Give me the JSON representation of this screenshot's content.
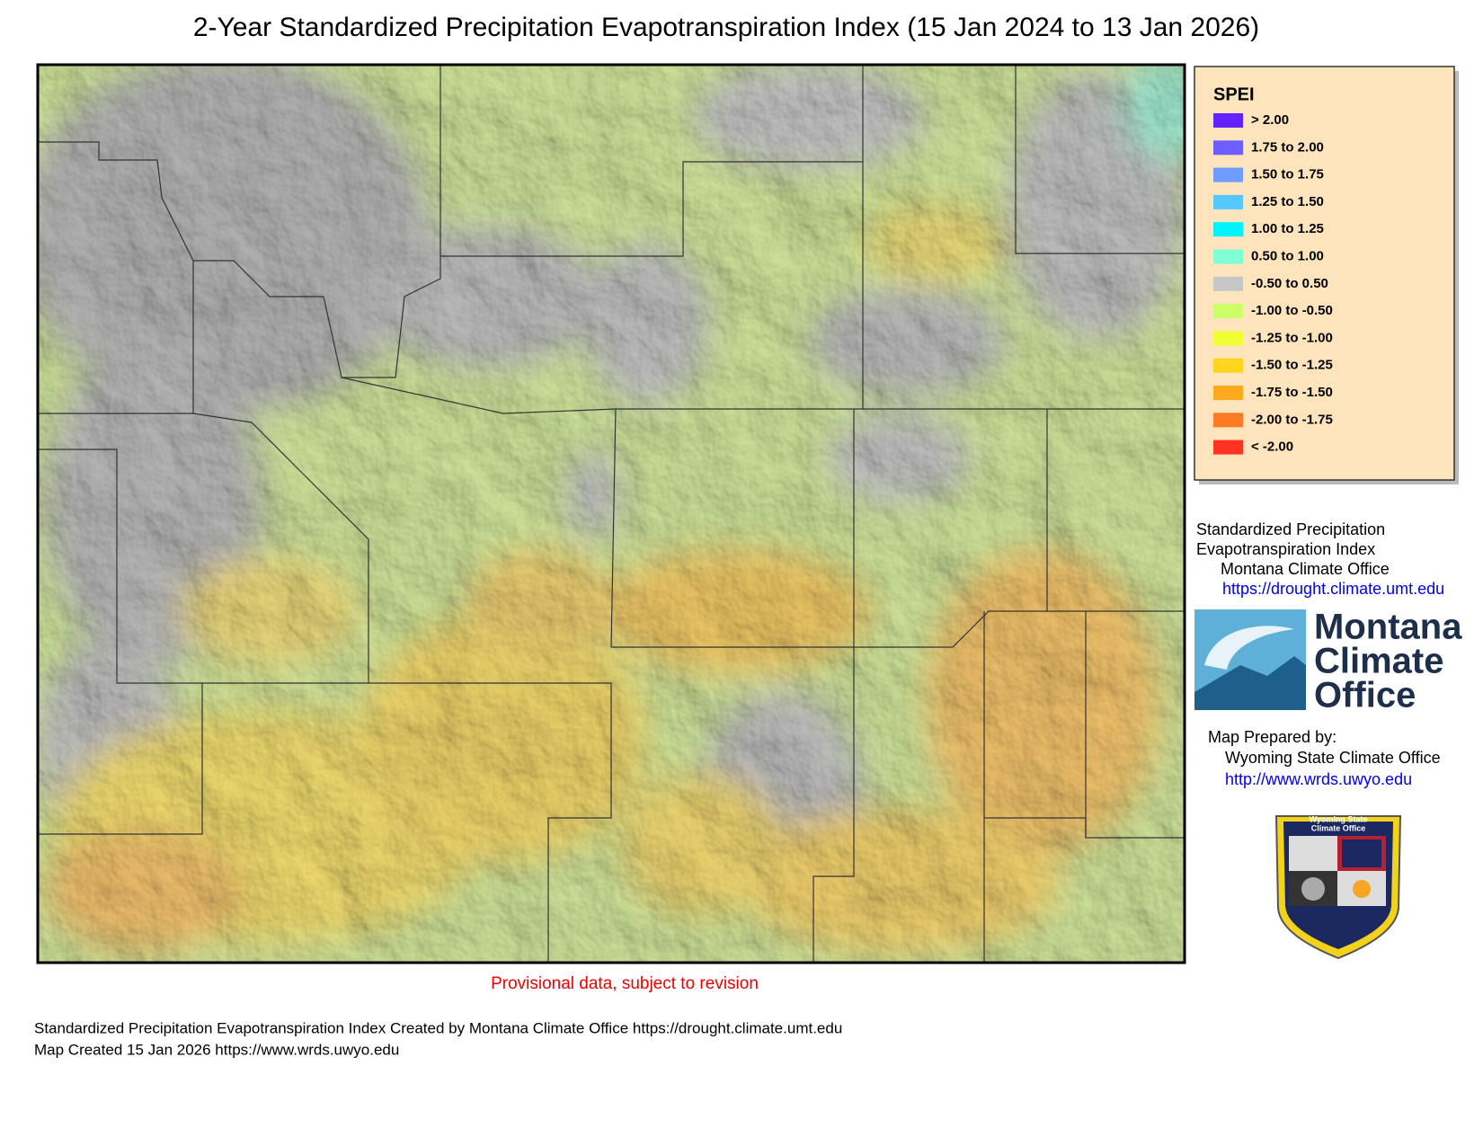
{
  "title": "2-Year Standardized Precipitation Evapotranspiration Index (15 Jan 2024 to 13 Jan 2026)",
  "legend": {
    "title": "SPEI",
    "items": [
      {
        "label": "> 2.00",
        "color": "#6422ff"
      },
      {
        "label": "1.75 to 2.00",
        "color": "#6e5eff"
      },
      {
        "label": "1.50 to 1.75",
        "color": "#6e9cff"
      },
      {
        "label": "1.25 to 1.50",
        "color": "#55c8ff"
      },
      {
        "label": "1.00 to 1.25",
        "color": "#00f4ff"
      },
      {
        "label": "0.50 to 1.00",
        "color": "#80ffd4"
      },
      {
        "label": "-0.50 to 0.50",
        "color": "#c6c6c6"
      },
      {
        "label": "-1.00 to -0.50",
        "color": "#ccff66"
      },
      {
        "label": "-1.25 to -1.00",
        "color": "#eeff33"
      },
      {
        "label": "-1.50 to -1.25",
        "color": "#ffd41e"
      },
      {
        "label": "-1.75 to -1.50",
        "color": "#ffaa1e"
      },
      {
        "label": "-2.00 to -1.75",
        "color": "#ff7a22"
      },
      {
        "label": "< -2.00",
        "color": "#ff3322"
      }
    ]
  },
  "credits": {
    "lines": [
      "Standardized Precipitation",
      "Evapotranspiration Index",
      "Montana Climate Office"
    ],
    "url": "https://drought.climate.umt.edu"
  },
  "logo": {
    "lines": [
      "Montana",
      "Climate",
      "Office"
    ]
  },
  "prepared": {
    "label": "Map Prepared by:",
    "org": "Wyoming State Climate Office",
    "url": "http://www.wrds.uwyo.edu"
  },
  "badge": {
    "lines": [
      "Wyoming State",
      "Climate Office"
    ]
  },
  "note": "Provisional data, subject to revision",
  "footer": [
    "Standardized Precipitation Evapotranspiration Index Created by Montana Climate Office https://drought.climate.umt.edu",
    "Map Created 15 Jan 2026 https://www.wrds.uwyo.edu"
  ]
}
